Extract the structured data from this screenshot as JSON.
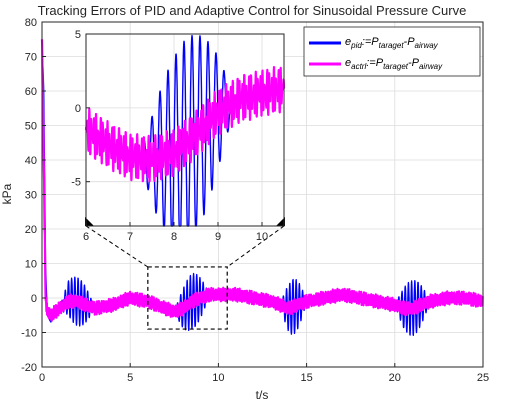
{
  "chart_data": [
    {
      "type": "line",
      "title": "Tracking Errors of PID and Adaptive Control for Sinusoidal Pressure Curve",
      "xlabel": "t/s",
      "ylabel": "kPa",
      "xlim": [
        0,
        25
      ],
      "ylim": [
        -20,
        80
      ],
      "xticks": [
        "0",
        "5",
        "10",
        "15",
        "20",
        "25"
      ],
      "yticks": [
        "-20",
        "-10",
        "0",
        "10",
        "20",
        "30",
        "40",
        "50",
        "60",
        "70",
        "80"
      ],
      "grid": true,
      "legend_position": "top-right",
      "series": [
        {
          "color": "#0000ff",
          "x": [
            0,
            0.1,
            0.2,
            0.3,
            0.5,
            1,
            1.5,
            2,
            2.5,
            3,
            4,
            5,
            6,
            7,
            7.5,
            8,
            8.5,
            9,
            9.5,
            10,
            11,
            12,
            13,
            13.5,
            14,
            14.5,
            15,
            16,
            17,
            18,
            19,
            20,
            20.5,
            21,
            21.5,
            22,
            23,
            24,
            25
          ],
          "y": [
            75,
            60,
            10,
            -5,
            -7,
            -3,
            0,
            -1,
            -2,
            -3,
            -2,
            0,
            -1,
            -3,
            -4,
            -3,
            -1,
            0,
            1,
            1,
            1,
            0,
            -1,
            -2,
            -3,
            -2,
            -1,
            0,
            1,
            0,
            -1,
            -2,
            -3,
            -3,
            -2,
            -1,
            0,
            0,
            -1
          ],
          "oscillation_bursts": [
            {
              "t": [
                1,
                3
              ],
              "amplitude": 7
            },
            {
              "t": [
                7.5,
                9.5
              ],
              "amplitude": 8
            },
            {
              "t": [
                13.5,
                15
              ],
              "amplitude": 8
            },
            {
              "t": [
                20,
                22
              ],
              "amplitude": 8
            }
          ]
        },
        {
          "color": "#ff00ff",
          "x": [
            0,
            0.1,
            0.2,
            0.3,
            0.5,
            1,
            1.5,
            2,
            2.5,
            3,
            4,
            5,
            6,
            7,
            7.5,
            8,
            8.5,
            9,
            9.5,
            10,
            11,
            12,
            13,
            13.5,
            14,
            14.5,
            15,
            16,
            17,
            18,
            19,
            20,
            20.5,
            21,
            21.5,
            22,
            23,
            24,
            25
          ],
          "y": [
            75,
            40,
            0,
            -4,
            -5,
            -3,
            -1,
            -1,
            -2,
            -3,
            -2,
            0,
            -1,
            -3,
            -4,
            -3,
            -1,
            0,
            1,
            1,
            1,
            0,
            -1,
            -2,
            -3,
            -2,
            -1,
            0,
            1,
            0,
            -1,
            -2,
            -3,
            -3,
            -2,
            -1,
            0,
            0,
            -1
          ],
          "noise_amplitude": 2
        }
      ]
    },
    {
      "type": "line",
      "xlim": [
        6,
        10.5
      ],
      "ylim": [
        -8,
        5
      ],
      "xticks": [
        "6",
        "7",
        "8",
        "9",
        "10"
      ],
      "yticks": [
        "-5",
        "0",
        "5"
      ],
      "grid": true,
      "zoom_window": {
        "x": [
          6,
          10.5
        ],
        "y": [
          -9,
          9
        ]
      },
      "series": [
        {
          "color": "#0000ff",
          "x": [
            6,
            6.5,
            7,
            7.5,
            8,
            8.5,
            9,
            9.5,
            10,
            10.5
          ],
          "y": [
            -1.5,
            -2.5,
            -3.3,
            -3.5,
            -3,
            -1.8,
            -0.3,
            0.6,
            1,
            1.3
          ],
          "oscillation_bursts": [
            {
              "t": [
                7.2,
                9.4
              ],
              "amplitude": 7
            }
          ]
        },
        {
          "color": "#ff00ff",
          "x": [
            6,
            6.5,
            7,
            7.5,
            8,
            8.5,
            9,
            9.5,
            10,
            10.5
          ],
          "y": [
            -1.5,
            -2.5,
            -3.3,
            -3.5,
            -3,
            -1.8,
            -0.3,
            0.6,
            1,
            1.3
          ],
          "noise_amplitude": 1.6
        }
      ]
    }
  ],
  "legend": [
    {
      "color": "#0000ff",
      "parts": [
        [
          "e",
          ""
        ],
        [
          "pid",
          "sub"
        ],
        [
          ":=P",
          ""
        ],
        [
          "taraget",
          "sub"
        ],
        [
          "-P",
          ""
        ],
        [
          "airway",
          "sub"
        ]
      ]
    },
    {
      "color": "#ff00ff",
      "parts": [
        [
          "e",
          ""
        ],
        [
          "actrl",
          "sub"
        ],
        [
          ":=P",
          ""
        ],
        [
          "taraget",
          "sub"
        ],
        [
          "-P",
          ""
        ],
        [
          "airway",
          "sub"
        ]
      ]
    }
  ]
}
